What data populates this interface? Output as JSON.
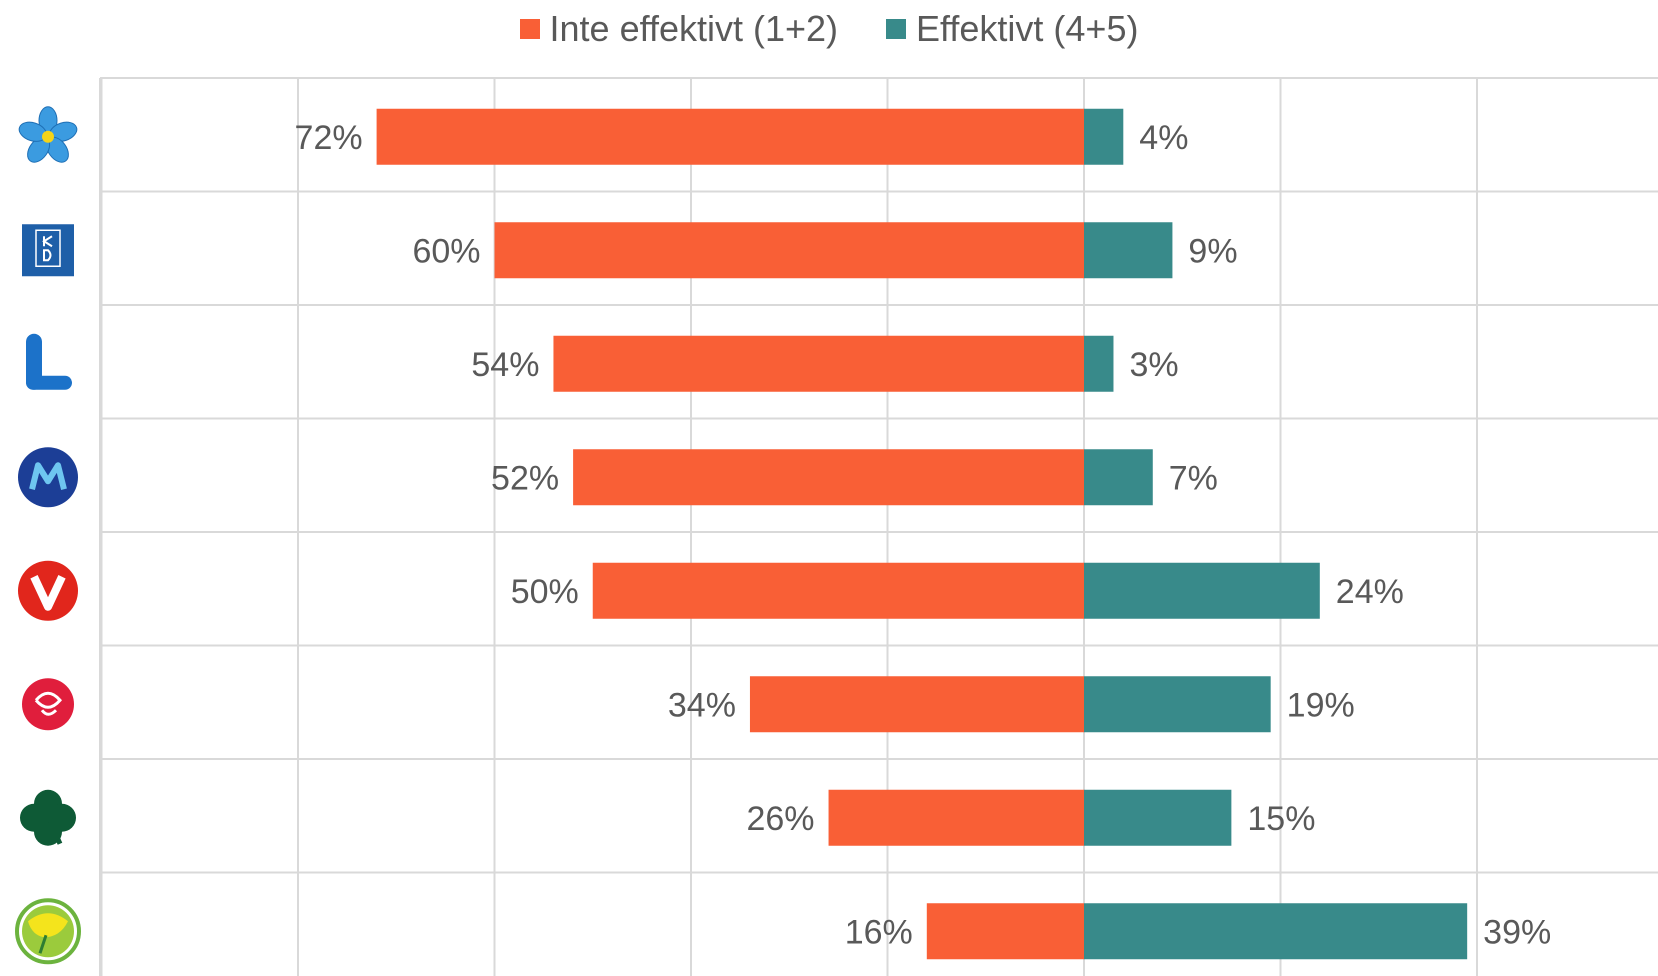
{
  "chart_data": {
    "type": "bar",
    "orientation": "horizontal-diverging",
    "categories": [
      "SD",
      "KD",
      "L",
      "M",
      "V",
      "S",
      "C",
      "MP"
    ],
    "category_icons": [
      "sd-flower-icon",
      "kd-logo-icon",
      "l-logo-icon",
      "m-logo-icon",
      "v-logo-icon",
      "s-rose-icon",
      "c-clover-icon",
      "mp-dandelion-icon"
    ],
    "series": [
      {
        "name": "Inte effektivt (1+2)",
        "color": "#F95F36",
        "direction": "left",
        "values": [
          72,
          60,
          54,
          52,
          50,
          34,
          26,
          16
        ],
        "labels": [
          "72%",
          "60%",
          "54%",
          "52%",
          "50%",
          "34%",
          "26%",
          "16%"
        ]
      },
      {
        "name": "Effektivt (4+5)",
        "color": "#388A8A",
        "direction": "right",
        "values": [
          4,
          9,
          3,
          7,
          24,
          19,
          15,
          39
        ],
        "labels": [
          "4%",
          "9%",
          "3%",
          "7%",
          "24%",
          "19%",
          "15%",
          "39%"
        ]
      }
    ],
    "xlim": [
      -100,
      60
    ],
    "grid": true,
    "legend_position": "top-center"
  }
}
